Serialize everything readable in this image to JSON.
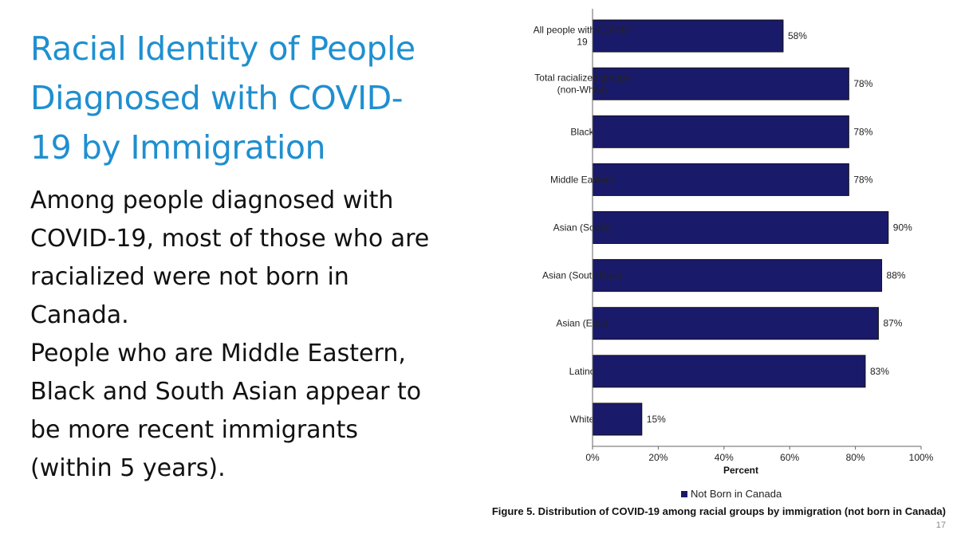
{
  "slide": {
    "title": "Racial Identity of People Diagnosed with COVID-19 by Immigration",
    "body": [
      "Among people diagnosed with COVID-19, most of those who are racialized were not born in Canada.",
      "People who are Middle Eastern, Black and South Asian appear to be more recent immigrants (within 5 years)."
    ],
    "caption": "Figure 5. Distribution of COVID-19 among racial groups by immigration (not born in Canada)",
    "page_number": "17"
  },
  "chart_data": {
    "type": "bar",
    "orientation": "horizontal",
    "categories": [
      "All people with COVID-19",
      "Total racialized groups (non-White)",
      "Black",
      "Middle Eastern",
      "Asian (South)",
      "Asian (South East)",
      "Asian (East)",
      "Latino",
      "White"
    ],
    "category_label_lines": [
      [
        "All people with COVID-",
        "19"
      ],
      [
        "Total racialized groups",
        "(non-White)"
      ],
      [
        "Black"
      ],
      [
        "Middle Eastern"
      ],
      [
        "Asian (South)"
      ],
      [
        "Asian (South East)"
      ],
      [
        "Asian (East)"
      ],
      [
        "Latino"
      ],
      [
        "White"
      ]
    ],
    "series": [
      {
        "name": "Not Born in Canada",
        "values": [
          58,
          78,
          78,
          78,
          90,
          88,
          87,
          83,
          15
        ],
        "labels": [
          "58%",
          "78%",
          "78%",
          "78%",
          "90%",
          "88%",
          "87%",
          "83%",
          "15%"
        ],
        "color": "#1a1a6b"
      }
    ],
    "xlabel": "Percent",
    "xlim": [
      0,
      100
    ],
    "x_ticks": [
      0,
      20,
      40,
      60,
      80,
      100
    ],
    "x_tick_labels": [
      "0%",
      "20%",
      "40%",
      "60%",
      "80%",
      "100%"
    ],
    "grid": false,
    "legend_position": "bottom"
  }
}
